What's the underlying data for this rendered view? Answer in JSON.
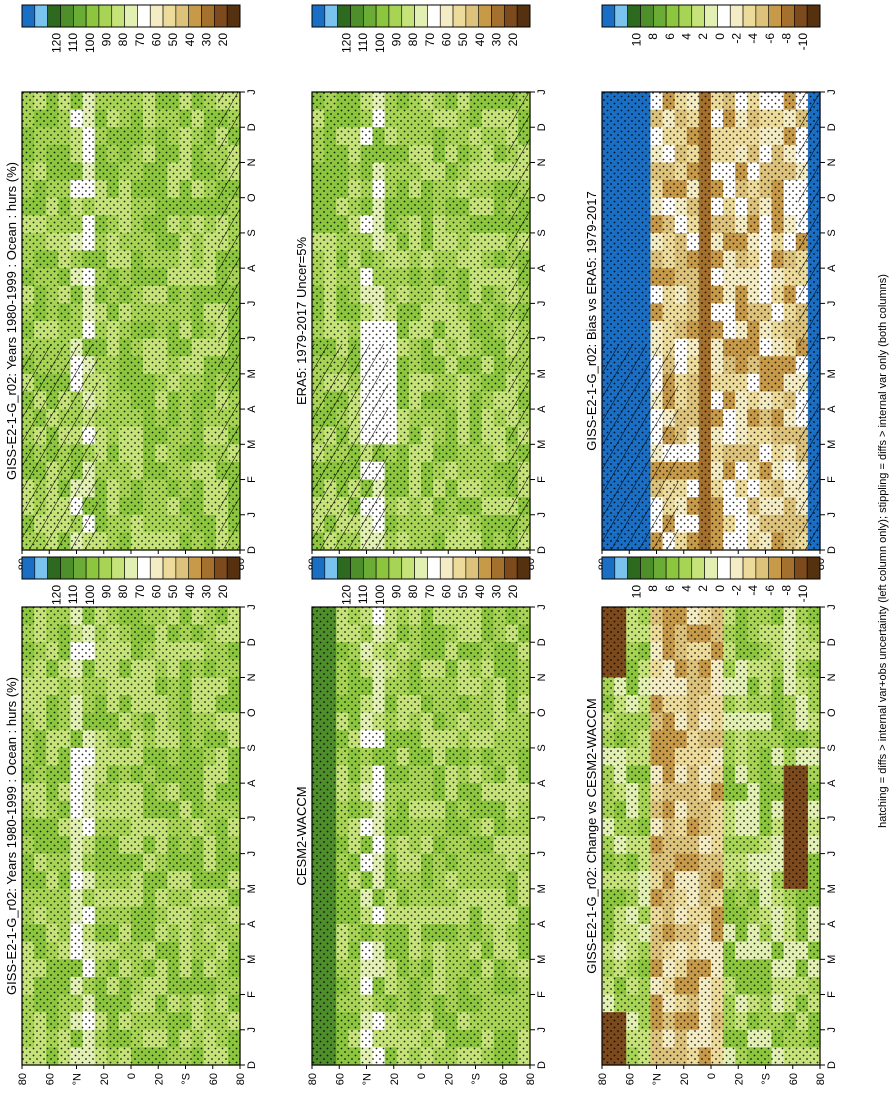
{
  "footer_note": "hatching = diffs > internal var+obs uncertainty (left column only); stippling = diffs > internal var only (both columns)",
  "chart_data": [
    {
      "type": "heatmap",
      "panel": "left-top",
      "title": "GISS-E2-1-G_r02: Years 1980-1999 : Ocean : hurs (%)",
      "x_ticks": [
        "D",
        "J",
        "F",
        "M",
        "A",
        "M",
        "J",
        "J",
        "A",
        "S",
        "O",
        "N",
        "D",
        "J"
      ],
      "y_ticks": [
        "80",
        "60",
        "°N",
        "20",
        "0",
        "20",
        "°S",
        "60",
        "80"
      ],
      "colorbar_labels": [
        "120",
        "110",
        "100",
        "90",
        "80",
        "70",
        "60",
        "50",
        "40",
        "30",
        "20"
      ],
      "stippling": true,
      "hatching": true
    },
    {
      "type": "heatmap",
      "panel": "right-top",
      "title": "GISS-E2-1-G_r02: Years 1980-1999 : Ocean : hurs (%)",
      "x_ticks": [
        "D",
        "J",
        "F",
        "M",
        "A",
        "M",
        "J",
        "J",
        "A",
        "S",
        "O",
        "N",
        "D",
        "J"
      ],
      "y_ticks": [
        "80",
        "60",
        "°N",
        "20",
        "0",
        "20",
        "°S",
        "60",
        "80"
      ],
      "colorbar_labels": [
        "120",
        "110",
        "100",
        "90",
        "80",
        "70",
        "60",
        "50",
        "40",
        "30",
        "20"
      ],
      "stippling": true,
      "hatching": false
    },
    {
      "type": "heatmap",
      "panel": "left-middle",
      "title": "ERA5: 1979-2017 Uncer=5%",
      "x_ticks": [
        "D",
        "J",
        "F",
        "M",
        "A",
        "M",
        "J",
        "J",
        "A",
        "S",
        "O",
        "N",
        "D",
        "J"
      ],
      "y_ticks": [
        "80",
        "60",
        "°N",
        "20",
        "0",
        "20",
        "°S",
        "60",
        "80"
      ],
      "colorbar_labels": [
        "120",
        "110",
        "100",
        "90",
        "80",
        "70",
        "60",
        "50",
        "40",
        "30",
        "20"
      ],
      "stippling": true,
      "hatching": true
    },
    {
      "type": "heatmap",
      "panel": "right-middle",
      "title": "CESM2-WACCM",
      "x_ticks": [
        "D",
        "J",
        "F",
        "M",
        "A",
        "M",
        "J",
        "J",
        "A",
        "S",
        "O",
        "N",
        "D",
        "J"
      ],
      "y_ticks": [
        "80",
        "60",
        "°N",
        "20",
        "0",
        "20",
        "°S",
        "60",
        "80"
      ],
      "colorbar_labels": [
        "120",
        "110",
        "100",
        "90",
        "80",
        "70",
        "60",
        "50",
        "40",
        "30",
        "20"
      ],
      "stippling": true,
      "hatching": false
    },
    {
      "type": "heatmap",
      "panel": "left-bottom",
      "title": "GISS-E2-1-G_r02: Bias vs ERA5: 1979-2017",
      "x_ticks": [
        "D",
        "J",
        "F",
        "M",
        "A",
        "M",
        "J",
        "J",
        "A",
        "S",
        "O",
        "N",
        "D",
        "J"
      ],
      "y_ticks": [
        "80",
        "60",
        "°N",
        "20",
        "0",
        "20",
        "°S",
        "60",
        "80"
      ],
      "colorbar_labels": [
        "10",
        "8",
        "6",
        "4",
        "2",
        "0",
        "-2",
        "-4",
        "-6",
        "-8",
        "-10"
      ],
      "stippling": true,
      "hatching": true
    },
    {
      "type": "heatmap",
      "panel": "right-bottom",
      "title": "GISS-E2-1-G_r02: Change vs CESM2-WACCM",
      "x_ticks": [
        "D",
        "J",
        "F",
        "M",
        "A",
        "M",
        "J",
        "J",
        "A",
        "S",
        "O",
        "N",
        "D",
        "J"
      ],
      "y_ticks": [
        "80",
        "60",
        "°N",
        "20",
        "0",
        "20",
        "°S",
        "60",
        "80"
      ],
      "colorbar_labels": [
        "10",
        "8",
        "6",
        "4",
        "2",
        "0",
        "-2",
        "-4",
        "-6",
        "-8",
        "-10"
      ],
      "stippling": true,
      "hatching": false
    }
  ],
  "colors": {
    "humidity_scale": [
      "#1a6fc4",
      "#79c3ee",
      "#2d6a1f",
      "#4f8f2b",
      "#6aac35",
      "#8cc63e",
      "#a8d455",
      "#c6e37a",
      "#e2f0b4",
      "#ffffff",
      "#f4ecc4",
      "#ecdb9a",
      "#dcc27a",
      "#c79a4a",
      "#a4702e",
      "#7c4a1c",
      "#56310f"
    ],
    "diff_scale": [
      "#1a6fc4",
      "#79c3ee",
      "#2d6a1f",
      "#4f8f2b",
      "#6aac35",
      "#8cc63e",
      "#a8d455",
      "#c6e37a",
      "#e2f0b4",
      "#ffffff",
      "#f4ecc4",
      "#ecdb9a",
      "#dcc27a",
      "#c79a4a",
      "#a4702e",
      "#7c4a1c",
      "#56310f"
    ]
  }
}
